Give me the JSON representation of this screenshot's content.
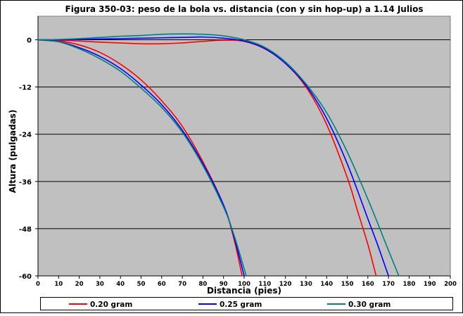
{
  "chart_data": {
    "type": "line",
    "title": "Figura 350-03: peso de la bola vs. distancia (con y sin hop-up) a 1.14 Julios",
    "xlabel": "Distancia (pies)",
    "ylabel": "Altura (pulgadas)",
    "xlim": [
      0,
      200
    ],
    "ylim": [
      -60,
      6
    ],
    "x_ticks": [
      "0",
      "10",
      "20",
      "30",
      "40",
      "50",
      "60",
      "70",
      "80",
      "90",
      "100",
      "110",
      "120",
      "130",
      "140",
      "150",
      "160",
      "170",
      "180",
      "190",
      "200"
    ],
    "y_ticks": [
      "0",
      "-12",
      "-24",
      "-36",
      "-48",
      "-60"
    ],
    "grid": "horizontal",
    "background": "#C0C0C0",
    "legend_position": "bottom",
    "series": [
      {
        "name": "0.20 gram",
        "color": "#FF0000",
        "curve": "sin hop-up",
        "x": [
          0,
          10,
          20,
          30,
          40,
          50,
          60,
          70,
          80,
          90,
          95,
          99
        ],
        "y": [
          0,
          -0.3,
          -1.3,
          -3.2,
          -6.2,
          -10.2,
          -15.5,
          -22,
          -31,
          -42,
          -50.5,
          -60
        ]
      },
      {
        "name": "0.25 gram",
        "color": "#0000FF",
        "curve": "sin hop-up",
        "x": [
          0,
          10,
          20,
          30,
          40,
          50,
          60,
          70,
          80,
          90,
          95,
          100
        ],
        "y": [
          0,
          -0.5,
          -2,
          -4.2,
          -7.3,
          -11.5,
          -16.5,
          -23,
          -31.5,
          -42,
          -50,
          -60
        ]
      },
      {
        "name": "0.30 gram",
        "color": "#008080",
        "curve": "sin hop-up",
        "x": [
          0,
          10,
          20,
          30,
          40,
          50,
          60,
          70,
          80,
          90,
          95,
          101
        ],
        "y": [
          0,
          -0.5,
          -2.3,
          -4.8,
          -8,
          -12.3,
          -17.2,
          -23.5,
          -32,
          -42.5,
          -49.5,
          -60
        ]
      },
      {
        "name": "0.20 gram",
        "color": "#FF0000",
        "curve": "con hop-up",
        "x": [
          0,
          10,
          20,
          30,
          40,
          50,
          60,
          70,
          80,
          90,
          100,
          110,
          120,
          130,
          140,
          150,
          155,
          160,
          164
        ],
        "y": [
          0,
          -0.1,
          -0.3,
          -0.6,
          -0.8,
          -1,
          -1,
          -0.8,
          -0.4,
          -0.1,
          -0.4,
          -2.3,
          -6,
          -12,
          -21.5,
          -35,
          -43.5,
          -52,
          -60
        ]
      },
      {
        "name": "0.25 gram",
        "color": "#0000FF",
        "curve": "con hop-up",
        "x": [
          0,
          10,
          20,
          30,
          40,
          50,
          60,
          70,
          80,
          90,
          100,
          110,
          120,
          130,
          140,
          150,
          160,
          165,
          170
        ],
        "y": [
          0,
          0,
          0.1,
          0.2,
          0.3,
          0.4,
          0.5,
          0.6,
          0.7,
          0.4,
          -0.3,
          -2.2,
          -6,
          -11.6,
          -20,
          -31.5,
          -45.5,
          -52.5,
          -60
        ]
      },
      {
        "name": "0.30 gram",
        "color": "#008080",
        "curve": "con hop-up",
        "x": [
          0,
          10,
          20,
          30,
          40,
          50,
          60,
          70,
          80,
          90,
          100,
          110,
          120,
          130,
          140,
          150,
          160,
          170,
          175
        ],
        "y": [
          0,
          0.1,
          0.3,
          0.6,
          0.9,
          1.1,
          1.4,
          1.5,
          1.4,
          1,
          0,
          -1.9,
          -5.6,
          -11.2,
          -18.5,
          -28.5,
          -40.5,
          -53.5,
          -60
        ]
      }
    ],
    "legend": [
      {
        "label": "0.20 gram",
        "color": "#FF0000"
      },
      {
        "label": "0.25 gram",
        "color": "#0000FF"
      },
      {
        "label": "0.30 gram",
        "color": "#008080"
      }
    ]
  }
}
